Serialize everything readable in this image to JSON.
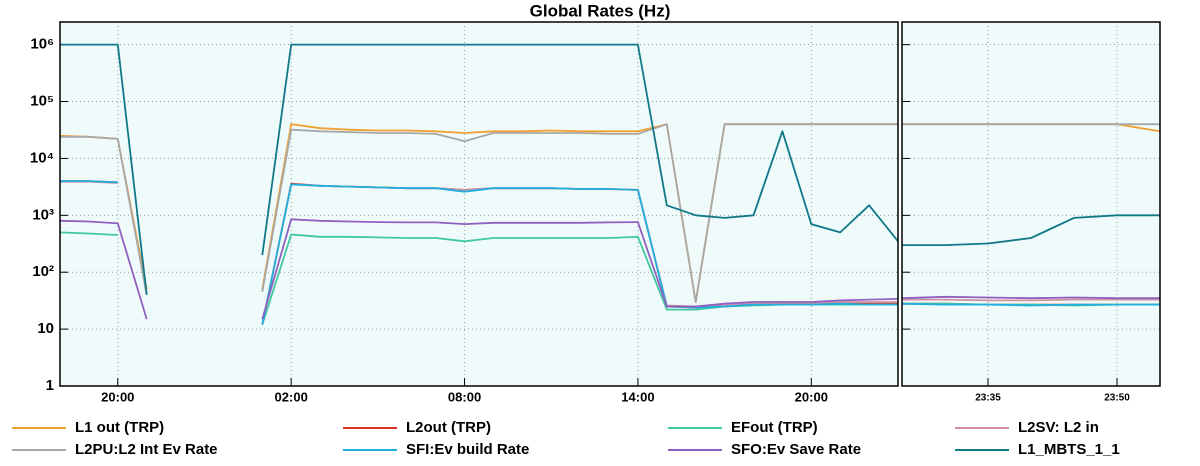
{
  "chart_data": [
    {
      "type": "line",
      "title": "Global Rates (Hz)",
      "log": true,
      "grid": true,
      "legend": "bottom",
      "ylim": [
        1,
        2500000
      ],
      "yticks": [
        1,
        10,
        {
          "value": 100,
          "label": "10²"
        },
        {
          "value": 1000,
          "label": "10³"
        },
        {
          "value": 10000,
          "label": "10⁴"
        },
        {
          "value": 100000,
          "label": "10⁵"
        },
        {
          "value": 1000000,
          "label": "10⁶"
        }
      ],
      "categories": [
        null,
        null,
        "20:00",
        null,
        null,
        null,
        null,
        null,
        "02:00",
        null,
        null,
        null,
        null,
        null,
        "08:00",
        null,
        null,
        null,
        null,
        null,
        "14:00",
        null,
        null,
        null,
        null,
        null,
        "20:00",
        null,
        null,
        null
      ],
      "series": [
        {
          "name": "L1 out (TRP)",
          "color": "#f0a030",
          "values": [
            25000,
            24000,
            22000,
            50,
            null,
            null,
            null,
            50,
            40000,
            34000,
            32000,
            31000,
            31000,
            30000,
            28000,
            30000,
            30000,
            31000,
            30000,
            30000,
            30000,
            40000,
            30,
            40000,
            40000,
            40000,
            40000,
            40000,
            40000,
            40000
          ]
        },
        {
          "name": "L2out (TRP)",
          "color": "#e03020",
          "values": [
            4000,
            4000,
            3800,
            null,
            null,
            null,
            null,
            12,
            3600,
            3300,
            3200,
            3100,
            3000,
            3000,
            2800,
            3000,
            3000,
            3000,
            2900,
            2900,
            2800,
            25,
            24,
            25,
            27,
            28,
            28,
            28,
            28,
            28
          ]
        },
        {
          "name": "EFout (TRP)",
          "color": "#40c8a0",
          "values": [
            500,
            480,
            450,
            null,
            null,
            null,
            null,
            12,
            460,
            420,
            420,
            410,
            400,
            400,
            350,
            400,
            400,
            400,
            400,
            400,
            420,
            22,
            22,
            25,
            26,
            27,
            27,
            27,
            27,
            27
          ]
        },
        {
          "name": "L2SV: L2 in",
          "color": "#d090a0",
          "values": [
            3900,
            3900,
            3700,
            null,
            null,
            null,
            null,
            12,
            3500,
            3300,
            3200,
            3100,
            3000,
            3000,
            2800,
            3000,
            3000,
            3000,
            2900,
            2900,
            2800,
            26,
            25,
            26,
            28,
            29,
            29,
            30,
            30,
            30
          ]
        },
        {
          "name": "L2PU:L2 Int Ev Rate",
          "color": "#a8a8a8",
          "values": [
            24000,
            24000,
            22000,
            40,
            null,
            null,
            null,
            45,
            32000,
            30000,
            29000,
            28000,
            28000,
            27000,
            20000,
            28000,
            28000,
            28000,
            28000,
            27000,
            27000,
            40000,
            30,
            40000,
            40000,
            40000,
            40000,
            40000,
            40000,
            40000
          ]
        },
        {
          "name": "SFI:Ev build Rate",
          "color": "#20b0e0",
          "values": [
            4000,
            4000,
            3800,
            null,
            null,
            null,
            null,
            12,
            3500,
            3300,
            3200,
            3100,
            3000,
            3000,
            2600,
            3000,
            3000,
            3000,
            2900,
            2900,
            2800,
            25,
            24,
            25,
            27,
            27,
            27,
            28,
            27,
            27
          ]
        },
        {
          "name": "SFO:Ev Save Rate",
          "color": "#9060c0",
          "values": [
            800,
            780,
            720,
            15,
            null,
            null,
            null,
            15,
            850,
            800,
            780,
            760,
            750,
            750,
            700,
            740,
            740,
            740,
            740,
            750,
            760,
            25,
            25,
            28,
            30,
            30,
            30,
            32,
            33,
            34
          ]
        },
        {
          "name": "L1_MBTS_1_1",
          "color": "#107888",
          "values": [
            1000000,
            1000000,
            1000000,
            40,
            null,
            null,
            null,
            200,
            1000000,
            1000000,
            1000000,
            1000000,
            1000000,
            1000000,
            1000000,
            1000000,
            1000000,
            1000000,
            1000000,
            1000000,
            1000000,
            1500,
            1000,
            900,
            1000,
            30000,
            700,
            500,
            1500,
            350
          ]
        }
      ]
    },
    {
      "type": "line",
      "categories": [
        null,
        null,
        "23:35",
        null,
        null,
        "23:50",
        null
      ],
      "series": [
        {
          "color": "#f0a030",
          "values": [
            40000,
            40000,
            40000,
            40000,
            40000,
            40000,
            30000
          ]
        },
        {
          "color": "#e03020",
          "values": [
            28,
            28,
            27,
            27,
            27,
            27,
            27
          ]
        },
        {
          "color": "#40c8a0",
          "values": [
            28,
            28,
            27,
            27,
            26,
            27,
            27
          ]
        },
        {
          "color": "#d090a0",
          "values": [
            33,
            33,
            32,
            32,
            33,
            33,
            33
          ]
        },
        {
          "color": "#a8a8a8",
          "values": [
            40000,
            40000,
            40000,
            40000,
            40000,
            40000,
            40000
          ]
        },
        {
          "color": "#20b0e0",
          "values": [
            28,
            27,
            27,
            26,
            27,
            27,
            27
          ]
        },
        {
          "color": "#9060c0",
          "values": [
            35,
            37,
            36,
            35,
            36,
            35,
            35
          ]
        },
        {
          "color": "#107888",
          "values": [
            300,
            300,
            320,
            400,
            900,
            1000,
            1000
          ]
        }
      ]
    }
  ]
}
